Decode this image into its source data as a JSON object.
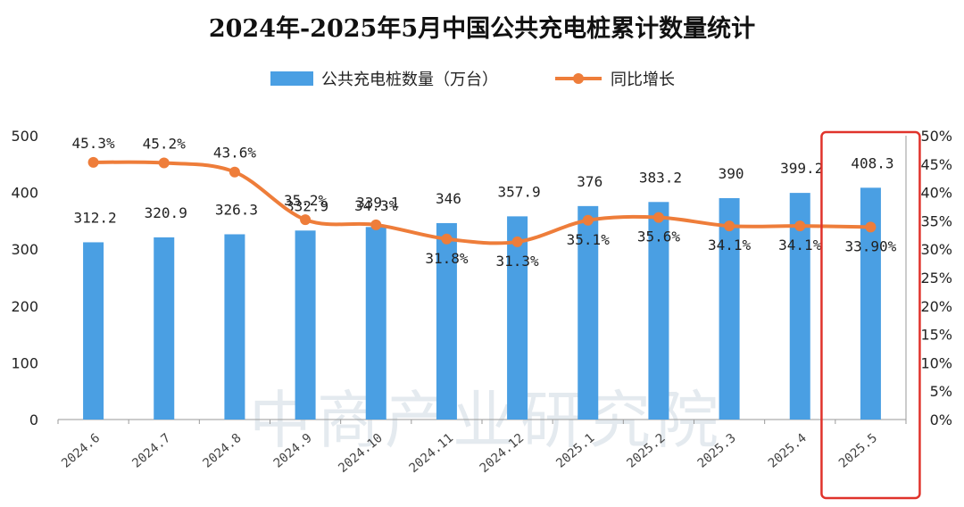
{
  "chart_data": {
    "type": "bar",
    "title": "2024年-2025年5月中国公共充电桩累计数量统计",
    "categories": [
      "2024.6",
      "2024.7",
      "2024.8",
      "2024.9",
      "2024.10",
      "2024.11",
      "2024.12",
      "2025.1",
      "2025.2",
      "2025.3",
      "2025.4",
      "2025.5"
    ],
    "series": [
      {
        "name": "公共充电桩数量（万台）",
        "type": "bar",
        "axis": "left",
        "values": [
          312.2,
          320.9,
          326.3,
          332.9,
          339.1,
          346,
          357.9,
          376,
          383.2,
          390,
          399.2,
          408.3
        ],
        "labels": [
          "312.2",
          "320.9",
          "326.3",
          "332.9",
          "339.1",
          "346",
          "357.9",
          "376",
          "383.2",
          "390",
          "399.2",
          "408.3"
        ],
        "color": "#4a9fe3"
      },
      {
        "name": "同比增长",
        "type": "line",
        "axis": "right",
        "values": [
          45.3,
          45.2,
          43.6,
          35.2,
          34.3,
          31.8,
          31.3,
          35.1,
          35.6,
          34.1,
          34.1,
          33.9
        ],
        "labels": [
          "45.3%",
          "45.2%",
          "43.6%",
          "35.2%",
          "34.3%",
          "31.8%",
          "31.3%",
          "35.1%",
          "35.6%",
          "34.1%",
          "34.1%",
          "33.90%"
        ],
        "color": "#ee7d3a"
      }
    ],
    "ylim_left": [
      0,
      500
    ],
    "yticks_left": [
      "0",
      "100",
      "200",
      "300",
      "400",
      "500"
    ],
    "ylim_right": [
      0,
      50
    ],
    "yticks_right": [
      "0%",
      "5%",
      "10%",
      "15%",
      "20%",
      "25%",
      "30%",
      "35%",
      "40%",
      "45%",
      "50%"
    ],
    "grid": false,
    "legend_position": "top-center",
    "highlight_category": "2025.5",
    "highlight_color": "#e0332b"
  },
  "watermark": "中商产业研究院"
}
